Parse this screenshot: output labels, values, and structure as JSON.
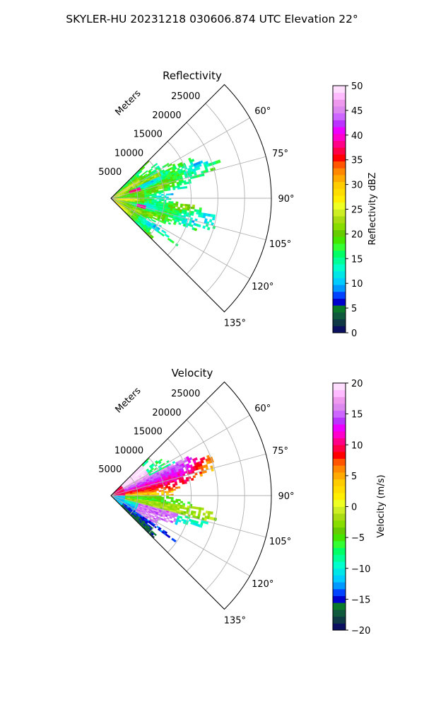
{
  "figure": {
    "suptitle": "SKYLER-HU  20231218  030606.874 UTC Elevation 22°"
  },
  "chart_data": [
    {
      "type": "heatmap",
      "projection": "polar-sector",
      "title": "Reflectivity",
      "radial_label": "Meters",
      "radial_ticks": [
        5000,
        10000,
        15000,
        20000,
        25000
      ],
      "radial_tick_labels": [
        "5000",
        "10000",
        "15000",
        "20000",
        "25000"
      ],
      "r_max": 30000,
      "angle_range_deg": [
        45,
        135
      ],
      "angle_ticks_deg": [
        60,
        75,
        90,
        105,
        120,
        135
      ],
      "angle_tick_labels": [
        "60°",
        "75°",
        "90°",
        "105°",
        "120°",
        "135°"
      ],
      "grid": true,
      "colorbar": {
        "label": "Reflectivity dBZ",
        "min": 0,
        "max": 50,
        "ticks": [
          0,
          5,
          10,
          15,
          20,
          25,
          30,
          35,
          40,
          45,
          50
        ],
        "tick_labels": [
          "0",
          "5",
          "10",
          "15",
          "20",
          "25",
          "30",
          "35",
          "40",
          "45",
          "50"
        ],
        "colors": [
          "#0b1160",
          "#0f3a45",
          "#0f5a3c",
          "#0a7a2a",
          "#0000cc",
          "#0044ff",
          "#0099ff",
          "#00ccff",
          "#00e5e5",
          "#00ffcc",
          "#00ff99",
          "#00ff66",
          "#33ff33",
          "#44e600",
          "#66cc00",
          "#88dd00",
          "#aadd11",
          "#ccee22",
          "#eeff22",
          "#ffee00",
          "#ffdd00",
          "#ffcc00",
          "#ffaa00",
          "#ff8800",
          "#ff5500",
          "#ff0000",
          "#ff0044",
          "#ff0088",
          "#ff00cc",
          "#ee00ff",
          "#bb33ff",
          "#cc66ff",
          "#dd88ee",
          "#ee99ee",
          "#ffbbff",
          "#ffddff"
        ]
      },
      "data_extent_m": {
        "angle_deg": [
          45,
          135
        ],
        "range_m": [
          0,
          20000
        ]
      },
      "dominant_values": "mostly 14-20 dBZ with 25-30 dBZ near radar and cores of 35-40 dBZ"
    },
    {
      "type": "heatmap",
      "projection": "polar-sector",
      "title": "Velocity",
      "radial_label": "Meters",
      "radial_ticks": [
        5000,
        10000,
        15000,
        20000,
        25000
      ],
      "radial_tick_labels": [
        "5000",
        "10000",
        "15000",
        "20000",
        "25000"
      ],
      "r_max": 30000,
      "angle_range_deg": [
        45,
        135
      ],
      "angle_ticks_deg": [
        60,
        75,
        90,
        105,
        120,
        135
      ],
      "angle_tick_labels": [
        "60°",
        "75°",
        "90°",
        "105°",
        "120°",
        "135°"
      ],
      "grid": true,
      "colorbar": {
        "label": "Velocity (m/s)",
        "min": -20,
        "max": 20,
        "ticks": [
          -20,
          -15,
          -10,
          -5,
          0,
          5,
          10,
          15,
          20
        ],
        "tick_labels": [
          "−20",
          "−15",
          "−10",
          "−5",
          "0",
          "5",
          "10",
          "15",
          "20"
        ],
        "colors": [
          "#0b1160",
          "#0f3a45",
          "#0f5a3c",
          "#0a7a2a",
          "#0000cc",
          "#0044ff",
          "#0099ff",
          "#00ccff",
          "#00e5e5",
          "#00ffcc",
          "#00ff99",
          "#00ff66",
          "#33ff33",
          "#44e600",
          "#66cc00",
          "#88dd00",
          "#aadd11",
          "#ccee22",
          "#eeff22",
          "#ffee00",
          "#ffdd00",
          "#ffcc00",
          "#ffaa00",
          "#ff8800",
          "#ff5500",
          "#ff0000",
          "#ff0044",
          "#ff0088",
          "#ff00cc",
          "#ee00ff",
          "#bb33ff",
          "#cc66ff",
          "#dd88ee",
          "#ee99ee",
          "#ffbbff",
          "#ffddff"
        ]
      },
      "data_extent_m": {
        "angle_deg": [
          45,
          135
        ],
        "range_m": [
          0,
          20000
        ]
      },
      "dominant_values": "positive 5-15 m/s north of 90°, negative -5 to -12 m/s south of 90° with 12-18 m/s pocket"
    }
  ]
}
